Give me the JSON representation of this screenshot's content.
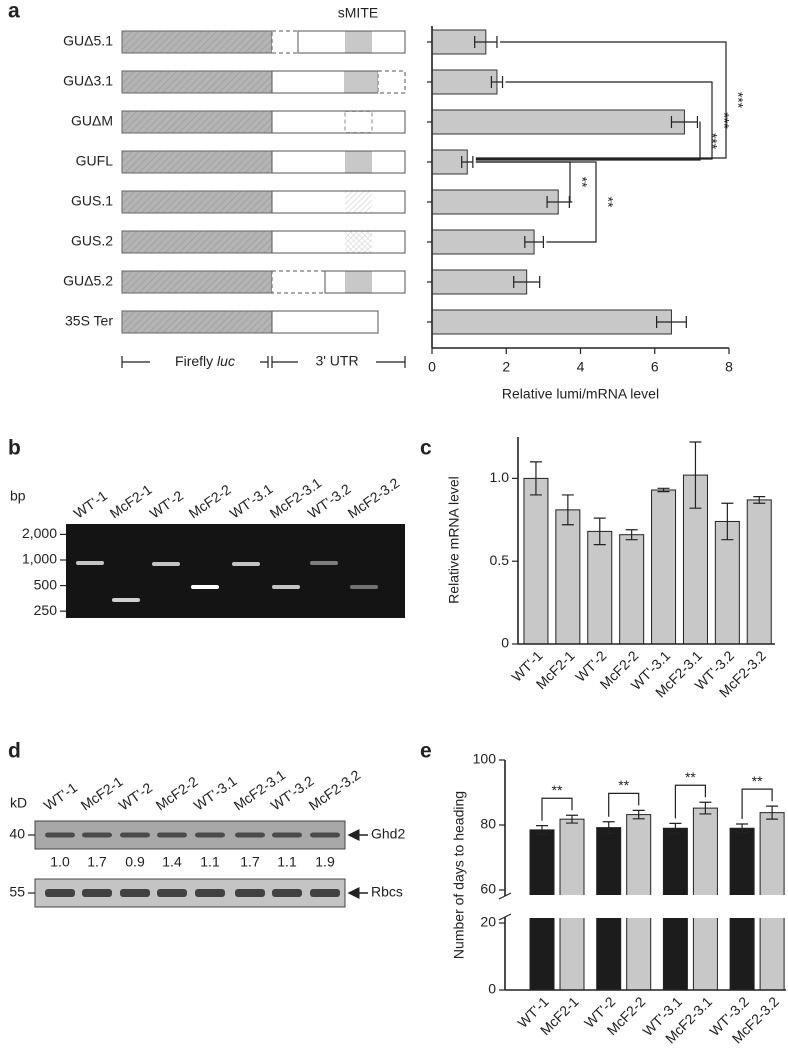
{
  "chart_data": [
    {
      "type": "hbar",
      "label": "a",
      "categories": [
        "GUΔ5.1",
        "GUΔ3.1",
        "GUΔM",
        "GUFL",
        "GUS.1",
        "GUS.2",
        "GUΔ5.2",
        "35S Ter"
      ],
      "values": [
        1.45,
        1.75,
        6.8,
        0.95,
        3.4,
        2.75,
        2.55,
        6.45
      ],
      "errors": [
        0.3,
        0.15,
        0.35,
        0.15,
        0.3,
        0.25,
        0.35,
        0.4
      ],
      "color": "#c8c8c8",
      "xlim": [
        0,
        8
      ],
      "xticks": [
        0,
        2,
        4,
        6,
        8
      ],
      "xlabel": "Relative lumi/mRNA level",
      "significance": [
        {
          "pair": [
            0,
            3
          ],
          "label": "***"
        },
        {
          "pair": [
            1,
            3
          ],
          "label": "***"
        },
        {
          "pair": [
            2,
            3
          ],
          "label": "***"
        },
        {
          "pair": [
            3,
            4
          ],
          "label": "**"
        },
        {
          "pair": [
            3,
            5
          ],
          "label": "**"
        }
      ],
      "construct": {
        "element": "sMITE",
        "coding_name": "Firefly",
        "coding_gene": "luc",
        "utr": "3' UTR"
      }
    },
    {
      "type": "bar",
      "label": "c",
      "categories": [
        "WT'-1",
        "McF2-1",
        "WT'-2",
        "McF2-2",
        "WT'-3.1",
        "McF2-3.1",
        "WT'-3.2",
        "McF2-3.2"
      ],
      "values": [
        1.0,
        0.81,
        0.68,
        0.66,
        0.93,
        1.02,
        0.74,
        0.87
      ],
      "errors": [
        0.1,
        0.09,
        0.08,
        0.03,
        0.01,
        0.2,
        0.11,
        0.02
      ],
      "color": "#c8c8c8",
      "ylim": [
        0,
        1.25
      ],
      "yticks": [
        0,
        0.5,
        {
          "value": 1,
          "label": "1.0"
        }
      ],
      "ylabel": "Relative mRNA level"
    },
    {
      "type": "bar",
      "label": "e",
      "categories": [
        "WT'-1",
        "McF2-1",
        "WT'-2",
        "McF2-2",
        "WT'-3.1",
        "McF2-3.1",
        "WT'-3.2",
        "McF2-3.2"
      ],
      "values": [
        78.5,
        81.8,
        79.2,
        83.2,
        79.0,
        85.2,
        79.0,
        83.8
      ],
      "errors": [
        1.3,
        1.2,
        1.8,
        1.3,
        1.5,
        1.8,
        1.3,
        2.0
      ],
      "colors": [
        "#1c1c1c",
        "#c8c8c8",
        "#1c1c1c",
        "#c8c8c8",
        "#1c1c1c",
        "#c8c8c8",
        "#1c1c1c",
        "#c8c8c8"
      ],
      "ylim": [
        0,
        100
      ],
      "ybreak": [
        20,
        60
      ],
      "yticks": [
        0,
        20,
        60,
        80,
        100
      ],
      "ylabel": "Number of days to heading",
      "significance": [
        {
          "pair": [
            0,
            1
          ],
          "label": "**"
        },
        {
          "pair": [
            2,
            3
          ],
          "label": "**"
        },
        {
          "pair": [
            4,
            5
          ],
          "label": "**"
        },
        {
          "pair": [
            6,
            7
          ],
          "label": "**"
        }
      ]
    }
  ],
  "gels": [
    {
      "label": "b",
      "unit": "bp",
      "lanes": [
        "WT'-1",
        "McF2-1",
        "WT'-2",
        "McF2-2",
        "WT'-3.1",
        "McF2-3.1",
        "WT'-3.2",
        "McF2-3.2"
      ],
      "markers": [
        {
          "value": 2000,
          "label": "2,000"
        },
        {
          "value": 1000,
          "label": "1,000"
        },
        500,
        250
      ]
    },
    {
      "label": "d",
      "unit": "kD",
      "lanes": [
        "WT'-1",
        "McF2-1",
        "WT'-2",
        "McF2-2",
        "WT'-3.1",
        "McF2-3.1",
        "WT'-3.2",
        "McF2-3.2"
      ],
      "blots": [
        {
          "marker": 40,
          "band": "Ghd2",
          "quantification": [
            "1.0",
            "1.7",
            "0.9",
            "1.4",
            "1.1",
            "1.7",
            "1.1",
            "1.9"
          ]
        },
        {
          "marker": 55,
          "band": "Rbcs"
        }
      ]
    }
  ]
}
